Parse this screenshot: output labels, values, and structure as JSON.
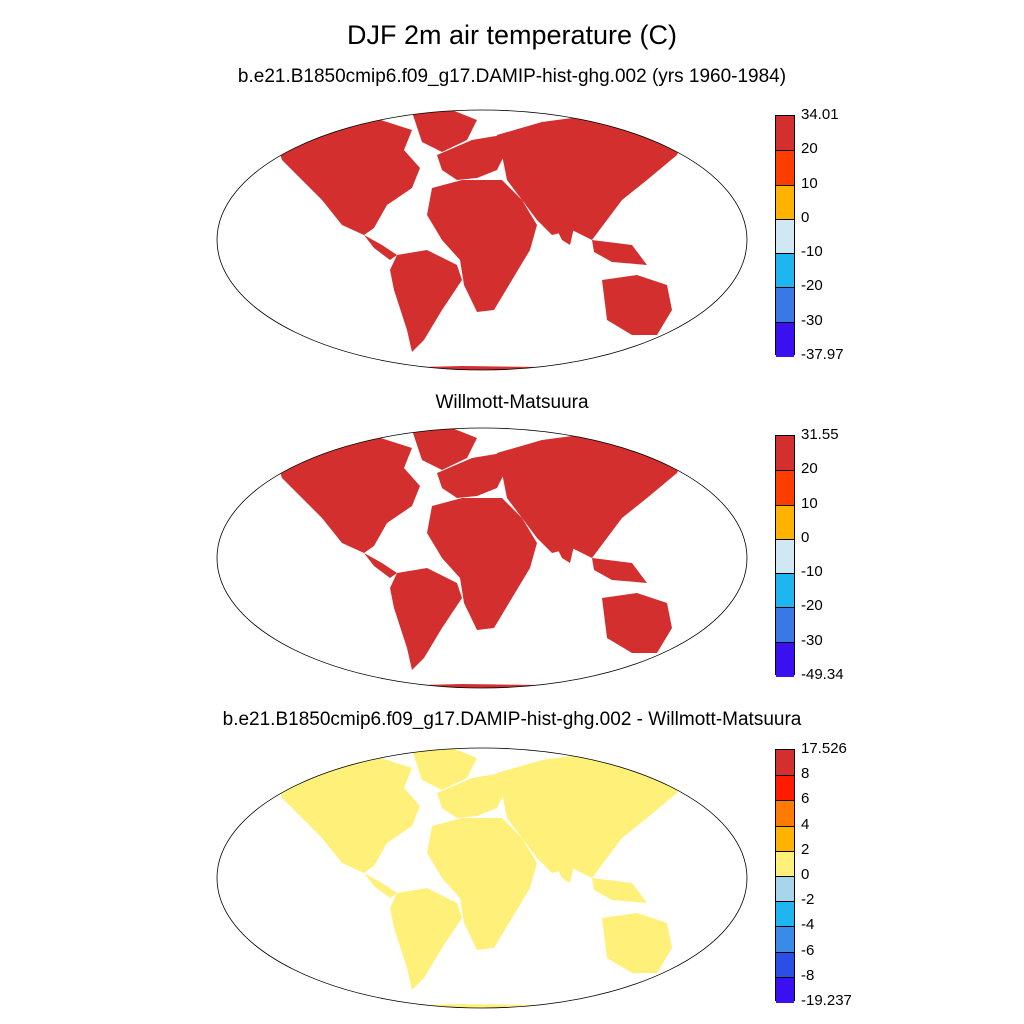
{
  "title": "DJF 2m air temperature (C)",
  "panels": [
    {
      "title": "b.e21.B1850cmip6.f09_g17.DAMIP-hist-ghg.002 (yrs 1960-1984)",
      "colorbar": {
        "labels": [
          "34.01",
          "20",
          "10",
          "0",
          "-10",
          "-20",
          "-30",
          "-37.97"
        ],
        "colors": [
          "#d32f2f",
          "#ff3d00",
          "#ffb300",
          "#cfe8f3",
          "#1fb5f0",
          "#3a78e6",
          "#3b10f0"
        ]
      }
    },
    {
      "title": "Willmott-Matsuura",
      "colorbar": {
        "labels": [
          "31.55",
          "20",
          "10",
          "0",
          "-10",
          "-20",
          "-30",
          "-49.34"
        ],
        "colors": [
          "#d32f2f",
          "#ff3d00",
          "#ffb300",
          "#cfe8f3",
          "#1fb5f0",
          "#3a78e6",
          "#3b10f0"
        ]
      }
    },
    {
      "title": "b.e21.B1850cmip6.f09_g17.DAMIP-hist-ghg.002 - Willmott-Matsuura",
      "colorbar": {
        "labels": [
          "17.526",
          "8",
          "6",
          "4",
          "2",
          "0",
          "-2",
          "-4",
          "-6",
          "-8",
          "-19.237"
        ],
        "colors": [
          "#d32f2f",
          "#ff1a00",
          "#ff7a00",
          "#ffb300",
          "#fff07a",
          "#a8d4ec",
          "#1fb5f0",
          "#3a8ae8",
          "#2a4ee6",
          "#3b10f0"
        ]
      }
    }
  ]
}
